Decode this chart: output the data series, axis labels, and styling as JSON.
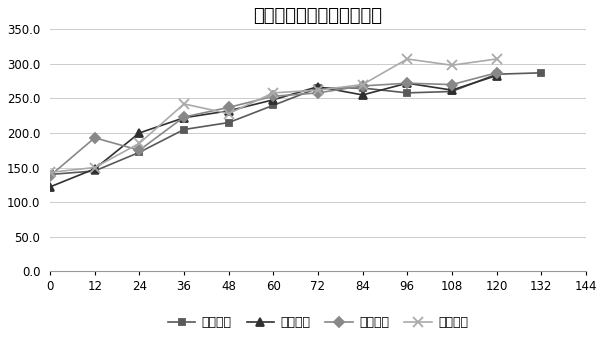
{
  "title": "甲醇诱导阶段湿重变化趋势",
  "x_values": [
    0,
    12,
    24,
    36,
    48,
    60,
    72,
    84,
    96,
    108,
    120,
    132
  ],
  "series": [
    {
      "name": "第一阶段",
      "values": [
        140,
        145,
        172,
        205,
        215,
        240,
        265,
        265,
        258,
        260,
        285,
        287
      ],
      "color": "#595959",
      "marker": "s"
    },
    {
      "name": "第二阶段",
      "values": [
        122,
        148,
        200,
        222,
        232,
        248,
        267,
        255,
        272,
        262,
        283,
        null
      ],
      "color": "#303030",
      "marker": "^"
    },
    {
      "name": "第三阶段",
      "values": [
        138,
        193,
        175,
        223,
        237,
        253,
        258,
        268,
        272,
        270,
        287,
        null
      ],
      "color": "#888888",
      "marker": "D"
    },
    {
      "name": "第四阶段",
      "values": [
        143,
        150,
        185,
        242,
        228,
        258,
        262,
        270,
        307,
        298,
        307,
        null
      ],
      "color": "#aaaaaa",
      "marker": "x"
    }
  ],
  "xlim": [
    0,
    144
  ],
  "ylim": [
    0,
    350
  ],
  "xticks": [
    0,
    12,
    24,
    36,
    48,
    60,
    72,
    84,
    96,
    108,
    120,
    132,
    144
  ],
  "yticks": [
    0.0,
    50.0,
    100.0,
    150.0,
    200.0,
    250.0,
    300.0,
    350.0
  ],
  "ytick_labels": [
    "0.0",
    "50.0",
    "100.0",
    "150.0",
    "200.0",
    "250.0",
    "300.0",
    "350.0"
  ],
  "background_color": "#ffffff",
  "grid_color": "#cccccc",
  "title_fontsize": 13,
  "legend_fontsize": 9,
  "tick_fontsize": 8.5
}
